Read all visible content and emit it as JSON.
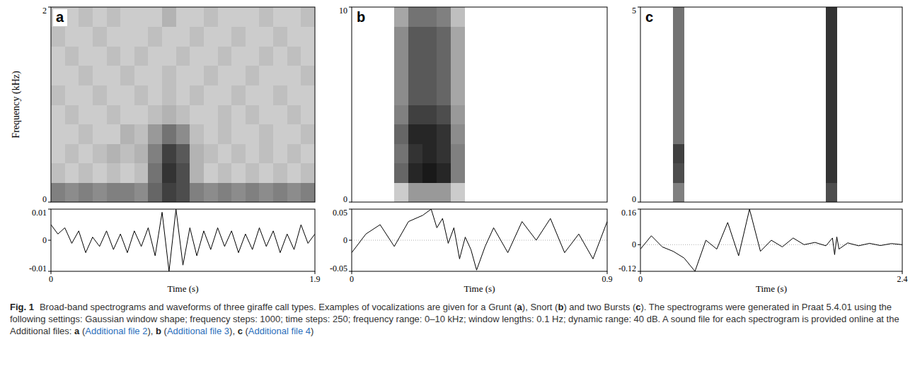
{
  "chart_data": [
    {
      "type": "heatmap",
      "panel": "a",
      "ylabel": "Frequency (kHz)",
      "xlim": [
        0,
        1.9
      ],
      "ylim": [
        0,
        2
      ],
      "yticks": [
        0,
        2
      ],
      "tick_labels": "y",
      "cells": [
        [
          0.5,
          0.45,
          0.5,
          0.45,
          0.5,
          0.5,
          0.45,
          0.6,
          0.75,
          0.7,
          0.5,
          0.45,
          0.5,
          0.45,
          0.5,
          0.45,
          0.5,
          0.45,
          0.5
        ],
        [
          0.25,
          0.2,
          0.25,
          0.2,
          0.25,
          0.2,
          0.25,
          0.55,
          0.8,
          0.7,
          0.3,
          0.2,
          0.25,
          0.2,
          0.25,
          0.2,
          0.25,
          0.2,
          0.25
        ],
        [
          0.2,
          0.25,
          0.2,
          0.25,
          0.3,
          0.25,
          0.3,
          0.5,
          0.75,
          0.65,
          0.3,
          0.25,
          0.2,
          0.25,
          0.2,
          0.25,
          0.2,
          0.25,
          0.2
        ],
        [
          0.2,
          0.2,
          0.25,
          0.2,
          0.2,
          0.3,
          0.25,
          0.4,
          0.55,
          0.45,
          0.25,
          0.2,
          0.25,
          0.2,
          0.2,
          0.25,
          0.2,
          0.2,
          0.25
        ],
        [
          0.2,
          0.25,
          0.2,
          0.2,
          0.25,
          0.2,
          0.2,
          0.25,
          0.3,
          0.25,
          0.2,
          0.2,
          0.25,
          0.2,
          0.25,
          0.2,
          0.2,
          0.25,
          0.2
        ],
        [
          0.25,
          0.2,
          0.2,
          0.25,
          0.2,
          0.2,
          0.25,
          0.2,
          0.25,
          0.2,
          0.25,
          0.2,
          0.2,
          0.25,
          0.2,
          0.2,
          0.25,
          0.2,
          0.2
        ],
        [
          0.2,
          0.2,
          0.25,
          0.2,
          0.2,
          0.25,
          0.2,
          0.2,
          0.25,
          0.2,
          0.2,
          0.25,
          0.2,
          0.2,
          0.25,
          0.2,
          0.2,
          0.2,
          0.25
        ],
        [
          0.2,
          0.25,
          0.2,
          0.2,
          0.25,
          0.2,
          0.25,
          0.2,
          0.2,
          0.25,
          0.2,
          0.2,
          0.25,
          0.2,
          0.2,
          0.25,
          0.2,
          0.25,
          0.2
        ],
        [
          0.25,
          0.2,
          0.2,
          0.25,
          0.2,
          0.2,
          0.2,
          0.25,
          0.2,
          0.2,
          0.25,
          0.2,
          0.2,
          0.25,
          0.2,
          0.2,
          0.25,
          0.2,
          0.2
        ],
        [
          0.2,
          0.2,
          0.25,
          0.2,
          0.25,
          0.2,
          0.2,
          0.2,
          0.3,
          0.2,
          0.2,
          0.25,
          0.2,
          0.2,
          0.2,
          0.25,
          0.2,
          0.2,
          0.25
        ]
      ]
    },
    {
      "type": "line",
      "xlabel": "Time (s)",
      "xlim": [
        0,
        1.9
      ],
      "xticks": [
        0,
        1.9
      ],
      "ylim": [
        -0.01,
        0.01
      ],
      "yticks": [
        -0.01,
        0,
        0.01
      ],
      "grid": false,
      "color": "#000000",
      "x": [
        0,
        0.05,
        0.1,
        0.15,
        0.2,
        0.25,
        0.3,
        0.35,
        0.4,
        0.45,
        0.5,
        0.55,
        0.6,
        0.65,
        0.7,
        0.75,
        0.8,
        0.85,
        0.9,
        0.95,
        1.0,
        1.05,
        1.1,
        1.15,
        1.2,
        1.25,
        1.3,
        1.35,
        1.4,
        1.45,
        1.5,
        1.55,
        1.6,
        1.65,
        1.7,
        1.75,
        1.8,
        1.85,
        1.9
      ],
      "values": [
        0.005,
        0.002,
        0.004,
        -0.001,
        0.003,
        -0.004,
        0.001,
        -0.002,
        0.003,
        -0.003,
        0.002,
        -0.004,
        0.003,
        -0.002,
        0.004,
        -0.005,
        0.009,
        -0.01,
        0.01,
        -0.008,
        0.004,
        -0.005,
        0.003,
        -0.003,
        0.004,
        -0.002,
        0.003,
        -0.004,
        0.002,
        -0.003,
        0.004,
        -0.002,
        0.003,
        -0.004,
        0.002,
        -0.003,
        0.005,
        -0.001,
        0.002
      ]
    },
    {
      "type": "heatmap",
      "panel": "b",
      "xlim": [
        0,
        0.9
      ],
      "ylim": [
        0,
        10
      ],
      "yticks": [
        0,
        10
      ],
      "tick_labels": "y",
      "cells": [
        [
          0,
          0,
          0,
          0.2,
          0.4,
          0.4,
          0.4,
          0.2,
          0,
          0,
          0,
          0,
          0,
          0,
          0,
          0,
          0,
          0
        ],
        [
          0,
          0,
          0,
          0.6,
          0.85,
          0.9,
          0.85,
          0.5,
          0,
          0,
          0,
          0,
          0,
          0,
          0,
          0,
          0,
          0
        ],
        [
          0,
          0,
          0,
          0.55,
          0.8,
          0.85,
          0.8,
          0.5,
          0,
          0,
          0,
          0,
          0,
          0,
          0,
          0,
          0,
          0
        ],
        [
          0,
          0,
          0,
          0.6,
          0.85,
          0.85,
          0.8,
          0.45,
          0,
          0,
          0,
          0,
          0,
          0,
          0,
          0,
          0,
          0
        ],
        [
          0,
          0,
          0,
          0.5,
          0.75,
          0.75,
          0.7,
          0.4,
          0,
          0,
          0,
          0,
          0,
          0,
          0,
          0,
          0,
          0
        ],
        [
          0,
          0,
          0,
          0.45,
          0.65,
          0.65,
          0.6,
          0.35,
          0,
          0,
          0,
          0,
          0,
          0,
          0,
          0,
          0,
          0
        ],
        [
          0,
          0,
          0,
          0.45,
          0.65,
          0.65,
          0.6,
          0.35,
          0,
          0,
          0,
          0,
          0,
          0,
          0,
          0,
          0,
          0
        ],
        [
          0,
          0,
          0,
          0.45,
          0.65,
          0.65,
          0.6,
          0.35,
          0,
          0,
          0,
          0,
          0,
          0,
          0,
          0,
          0,
          0
        ],
        [
          0,
          0,
          0,
          0.45,
          0.65,
          0.65,
          0.6,
          0.35,
          0,
          0,
          0,
          0,
          0,
          0,
          0,
          0,
          0,
          0
        ],
        [
          0,
          0,
          0,
          0.35,
          0.55,
          0.55,
          0.5,
          0.25,
          0,
          0,
          0,
          0,
          0,
          0,
          0,
          0,
          0,
          0
        ]
      ]
    },
    {
      "type": "line",
      "xlabel": "Time (s)",
      "xlim": [
        0,
        0.9
      ],
      "xticks": [
        0,
        0.9
      ],
      "ylim": [
        -0.05,
        0.05
      ],
      "yticks": [
        -0.05,
        0,
        0.05
      ],
      "grid": true,
      "color": "#000000",
      "x": [
        0,
        0.05,
        0.1,
        0.15,
        0.2,
        0.25,
        0.28,
        0.3,
        0.32,
        0.34,
        0.36,
        0.38,
        0.4,
        0.42,
        0.44,
        0.47,
        0.5,
        0.55,
        0.6,
        0.65,
        0.7,
        0.75,
        0.8,
        0.85,
        0.9
      ],
      "values": [
        -0.02,
        0.01,
        0.025,
        -0.01,
        0.03,
        0.04,
        0.05,
        0.02,
        0.035,
        -0.005,
        0.02,
        -0.03,
        0.005,
        -0.015,
        -0.048,
        -0.01,
        0.02,
        -0.02,
        0.03,
        0.0,
        0.035,
        -0.02,
        0.01,
        -0.03,
        0.03
      ]
    },
    {
      "type": "heatmap",
      "panel": "c",
      "xlim": [
        0,
        2.4
      ],
      "ylim": [
        0,
        5
      ],
      "yticks": [
        0,
        5
      ],
      "tick_labels": "y",
      "cells": [
        [
          0,
          0,
          0,
          0.5,
          0,
          0,
          0,
          0,
          0,
          0,
          0,
          0,
          0,
          0,
          0,
          0,
          0,
          0.7,
          0,
          0,
          0,
          0,
          0,
          0
        ],
        [
          0,
          0,
          0,
          0.7,
          0,
          0,
          0,
          0,
          0,
          0,
          0,
          0,
          0,
          0,
          0,
          0,
          0,
          0.8,
          0,
          0,
          0,
          0,
          0,
          0
        ],
        [
          0,
          0,
          0,
          0.75,
          0,
          0,
          0,
          0,
          0,
          0,
          0,
          0,
          0,
          0,
          0,
          0,
          0,
          0.8,
          0,
          0,
          0,
          0,
          0,
          0
        ],
        [
          0,
          0,
          0,
          0.55,
          0,
          0,
          0,
          0,
          0,
          0,
          0,
          0,
          0,
          0,
          0,
          0,
          0,
          0.8,
          0,
          0,
          0,
          0,
          0,
          0
        ],
        [
          0,
          0,
          0,
          0.55,
          0,
          0,
          0,
          0,
          0,
          0,
          0,
          0,
          0,
          0,
          0,
          0,
          0,
          0.8,
          0,
          0,
          0,
          0,
          0,
          0
        ],
        [
          0,
          0,
          0,
          0.55,
          0,
          0,
          0,
          0,
          0,
          0,
          0,
          0,
          0,
          0,
          0,
          0,
          0,
          0.8,
          0,
          0,
          0,
          0,
          0,
          0
        ],
        [
          0,
          0,
          0,
          0.55,
          0,
          0,
          0,
          0,
          0,
          0,
          0,
          0,
          0,
          0,
          0,
          0,
          0,
          0.8,
          0,
          0,
          0,
          0,
          0,
          0
        ],
        [
          0,
          0,
          0,
          0.55,
          0,
          0,
          0,
          0,
          0,
          0,
          0,
          0,
          0,
          0,
          0,
          0,
          0,
          0.8,
          0,
          0,
          0,
          0,
          0,
          0
        ],
        [
          0,
          0,
          0,
          0.55,
          0,
          0,
          0,
          0,
          0,
          0,
          0,
          0,
          0,
          0,
          0,
          0,
          0,
          0.8,
          0,
          0,
          0,
          0,
          0,
          0
        ],
        [
          0,
          0,
          0,
          0.55,
          0,
          0,
          0,
          0,
          0,
          0,
          0,
          0,
          0,
          0,
          0,
          0,
          0,
          0.8,
          0,
          0,
          0,
          0,
          0,
          0
        ]
      ]
    },
    {
      "type": "line",
      "xlabel": "Time (s)",
      "xlim": [
        0,
        2.4
      ],
      "xticks": [
        0,
        2.4
      ],
      "ylim": [
        -0.12,
        0.16
      ],
      "yticks": [
        -0.12,
        0,
        0.16
      ],
      "grid": true,
      "color": "#000000",
      "x": [
        0,
        0.1,
        0.2,
        0.3,
        0.4,
        0.5,
        0.6,
        0.7,
        0.8,
        0.9,
        1.0,
        1.1,
        1.2,
        1.3,
        1.4,
        1.5,
        1.6,
        1.7,
        1.76,
        1.78,
        1.8,
        1.82,
        1.9,
        2.0,
        2.1,
        2.2,
        2.3,
        2.4
      ],
      "values": [
        -0.02,
        0.04,
        -0.01,
        -0.03,
        -0.06,
        -0.12,
        0.02,
        -0.02,
        0.1,
        -0.05,
        0.16,
        -0.03,
        0.02,
        -0.01,
        0.03,
        0.0,
        0.01,
        -0.005,
        0.03,
        -0.045,
        0.035,
        -0.02,
        0.008,
        -0.005,
        0.006,
        -0.004,
        0.005,
        0.0
      ]
    }
  ],
  "caption": {
    "label": "Fig. 1",
    "segments": [
      {
        "text": "Broad-band spectrograms and waveforms of three giraffe call types. Examples of vocalizations are given for a Grunt (",
        "style": "plain"
      },
      {
        "text": "a",
        "style": "bold"
      },
      {
        "text": "), Snort (",
        "style": "plain"
      },
      {
        "text": "b",
        "style": "bold"
      },
      {
        "text": ") and two Bursts (",
        "style": "plain"
      },
      {
        "text": "c",
        "style": "bold"
      },
      {
        "text": "). The spectrograms were generated in Praat 5.4.01 using the following settings: Gaussian window shape; frequency steps: 1000; time steps: 250; frequency range: 0–10 kHz; window lengths: 0.1 Hz; dynamic range: 40 dB. A sound file for each spectrogram is provided online at the Additional files: ",
        "style": "plain"
      },
      {
        "text": "a",
        "style": "bold"
      },
      {
        "text": " (",
        "style": "plain"
      },
      {
        "text": "Additional file 2",
        "style": "link"
      },
      {
        "text": "), ",
        "style": "plain"
      },
      {
        "text": "b",
        "style": "bold"
      },
      {
        "text": " (",
        "style": "plain"
      },
      {
        "text": "Additional file 3",
        "style": "link"
      },
      {
        "text": "), ",
        "style": "plain"
      },
      {
        "text": "c",
        "style": "bold"
      },
      {
        "text": " (",
        "style": "plain"
      },
      {
        "text": "Additional file 4",
        "style": "link"
      },
      {
        "text": ")",
        "style": "plain"
      }
    ]
  }
}
